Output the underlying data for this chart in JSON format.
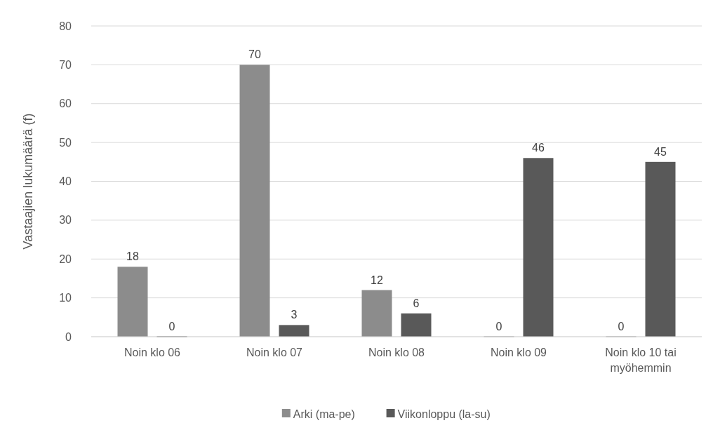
{
  "chart_data": {
    "type": "bar",
    "ylabel": "Vastaajien lukumäärä (f)",
    "categories": [
      "Noin klo 06",
      "Noin klo 07",
      "Noin klo 08",
      "Noin klo 09",
      "Noin klo 10 tai myöhemmin"
    ],
    "series": [
      {
        "name": "Arki (ma-pe)",
        "color": "#8c8c8c",
        "values": [
          18,
          70,
          12,
          0,
          0
        ]
      },
      {
        "name": "Viikonloppu (la-su)",
        "color": "#595959",
        "values": [
          0,
          3,
          6,
          46,
          45
        ]
      }
    ],
    "ylim": [
      0,
      80
    ],
    "yticks": [
      0,
      10,
      20,
      30,
      40,
      50,
      60,
      70,
      80
    ],
    "grid": "y",
    "legend": "bottom",
    "data_labels": true
  }
}
